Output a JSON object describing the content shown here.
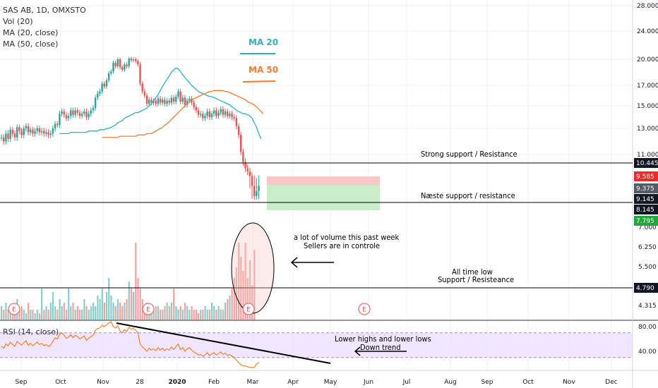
{
  "legend": {
    "symbol": "SAS AB, 1D, OMXSTO",
    "volume": "Vol (20)",
    "ma20": "MA (20, close)",
    "ma50": "MA (50, close)",
    "rsi": "RSI (14, close)"
  },
  "colors": {
    "up": "#26a69a",
    "down": "#ef5350",
    "ma20": "#2cb3b3",
    "ma50": "#f57c2d",
    "rsi_line": "#ff6d00",
    "rsi_band": "#e9dcff",
    "label_bg_dark": "#131722",
    "label_bg_red": "#ef2a2a",
    "label_bg_green": "#22a83a",
    "label_bg_gray": "#555a66"
  },
  "annotations": {
    "ma20_label": "MA 20",
    "ma50_label": "MA 50",
    "strong_support": "Strong support / Resistance",
    "naeste_support": "Næste support / resistance",
    "volume_note_1": "a lot of volume this past week",
    "volume_note_2": "Sellers are in controle",
    "all_time_low_1": "All time low",
    "all_time_low_2": "Support / Resisteance",
    "rsi_note_1": "Lower highs and lower lows",
    "rsi_note_2": "Down trend"
  },
  "earnings_marker": "E",
  "chart_data": [
    {
      "type": "candlestick",
      "title": "SAS AB, 1D, OMXSTO",
      "x_ticks": [
        "Sep",
        "Oct",
        "Nov",
        "28",
        "2020",
        "Feb",
        "Mar",
        "Apr",
        "May",
        "Jun",
        "Jul",
        "Aug",
        "Sep",
        "Oct",
        "Nov",
        "Dec"
      ],
      "y_ticks": [
        "28.000",
        "24.000",
        "20.000",
        "17.000",
        "15.000",
        "13.000",
        "11.000"
      ],
      "price_labels": [
        {
          "value": "10.445",
          "style": "dark"
        },
        {
          "value": "9.585",
          "style": "red"
        },
        {
          "value": "9.375",
          "style": "gray"
        },
        {
          "value": "9.145",
          "style": "dark"
        },
        {
          "value": "8.145",
          "style": "dark"
        },
        {
          "value": "7.795",
          "style": "green"
        }
      ],
      "horizontal_lines": [
        10.445,
        8.145
      ],
      "position_box": {
        "entry": 9.375,
        "stop": 9.585,
        "target": 7.795
      },
      "close": [
        12.3,
        12.0,
        12.6,
        12.2,
        12.9,
        12.6,
        12.3,
        13.1,
        12.8,
        12.5,
        13.0,
        13.2,
        12.7,
        12.9,
        12.6,
        12.8,
        13.0,
        12.7,
        12.8,
        12.6,
        12.7,
        12.5,
        12.6,
        13.0,
        13.4,
        13.3,
        14.3,
        14.5,
        14.2,
        13.9,
        14.1,
        14.6,
        14.2,
        14.6,
        14.4,
        14.1,
        14.3,
        14.5,
        14.0,
        14.3,
        14.6,
        14.8,
        15.8,
        16.2,
        16.4,
        17.2,
        16.9,
        17.6,
        18.4,
        18.6,
        19.6,
        19.2,
        20.0,
        19.1,
        18.8,
        19.4,
        19.2,
        20.1,
        19.9,
        20.0,
        19.8,
        19.4,
        17.2,
        16.4,
        16.0,
        15.2,
        15.6,
        15.3,
        15.5,
        15.2,
        15.7,
        15.3,
        15.6,
        15.2,
        15.5,
        15.3,
        15.8,
        15.4,
        15.9,
        16.4,
        15.4,
        15.8,
        15.1,
        15.5,
        15.7,
        15.3,
        14.9,
        14.6,
        14.2,
        14.3,
        13.9,
        14.1,
        14.5,
        14.0,
        14.3,
        14.6,
        14.1,
        14.4,
        14.7,
        14.2,
        14.5,
        14.1,
        14.3,
        14.0,
        13.9,
        13.2,
        12.5,
        11.2,
        10.5,
        10.1,
        9.9,
        9.6,
        9.4,
        9.2,
        9.3,
        9.4
      ],
      "ma20": [
        12.6,
        12.6,
        12.6,
        12.6,
        12.6,
        12.7,
        12.7,
        12.7,
        12.7,
        12.7,
        12.7,
        12.7,
        12.7,
        12.8,
        12.8,
        12.8,
        12.8,
        12.8,
        12.9,
        12.9,
        12.9,
        13.0,
        13.0,
        13.1,
        13.2,
        13.3,
        13.5,
        13.6,
        13.7,
        13.9,
        14.0,
        14.1,
        14.2,
        14.3,
        14.4,
        14.4,
        14.5,
        14.6,
        14.7,
        14.8,
        15.0,
        15.2,
        15.5,
        15.8,
        16.1,
        16.5,
        16.9,
        17.3,
        17.7,
        18.1,
        18.5,
        18.8,
        19.0,
        18.9,
        18.6,
        18.2,
        17.9,
        17.6,
        17.3,
        17.0,
        16.8,
        16.6,
        16.4,
        16.3,
        16.2,
        16.1,
        16.0,
        15.9,
        15.9,
        15.8,
        15.7,
        15.6,
        15.5,
        15.4,
        15.3,
        15.2,
        15.1,
        14.9,
        14.8,
        14.6,
        14.5,
        14.4,
        14.3,
        14.3,
        14.2,
        14.1,
        13.9,
        13.5,
        13.1,
        12.6,
        12.2
      ],
      "ma50": [
        12.3,
        12.3,
        12.3,
        12.3,
        12.3,
        12.3,
        12.3,
        12.3,
        12.4,
        12.4,
        12.4,
        12.4,
        12.4,
        12.4,
        12.4,
        12.4,
        12.5,
        12.5,
        12.5,
        12.5,
        12.6,
        12.6,
        12.6,
        12.7,
        12.8,
        12.9,
        13.0,
        13.1,
        13.3,
        13.4,
        13.6,
        13.8,
        14.0,
        14.2,
        14.4,
        14.6,
        14.8,
        15.0,
        15.2,
        15.4,
        15.6,
        15.7,
        15.8,
        15.9,
        16.0,
        16.1,
        16.2,
        16.3,
        16.4,
        16.4,
        16.5,
        16.5,
        16.5,
        16.5,
        16.5,
        16.4,
        16.4,
        16.3,
        16.2,
        16.1,
        16.0,
        15.9,
        15.8,
        15.7,
        15.6,
        15.4,
        15.3,
        15.2,
        15.1,
        14.9,
        14.7,
        14.5,
        14.3
      ]
    },
    {
      "type": "bar",
      "title": "Vol (20)",
      "y_ticks": [
        "7.000",
        "6.250",
        "5.500",
        "4.315"
      ],
      "horizontal_line": 4.79,
      "price_label": {
        "value": "4.790",
        "style": "dark"
      },
      "values": [
        0.4,
        0.3,
        0.5,
        0.3,
        0.4,
        0.3,
        0.2,
        0.6,
        0.3,
        0.4,
        0.3,
        0.2,
        0.5,
        0.3,
        0.3,
        0.2,
        0.3,
        0.2,
        0.9,
        0.3,
        0.4,
        0.3,
        0.5,
        0.8,
        0.4,
        0.3,
        0.6,
        0.4,
        0.5,
        0.3,
        0.9,
        0.4,
        0.5,
        0.3,
        0.4,
        0.3,
        0.3,
        0.6,
        0.4,
        0.3,
        0.4,
        0.5,
        0.4,
        0.7,
        0.6,
        0.9,
        0.5,
        0.8,
        1.2,
        0.7,
        0.5,
        0.4,
        0.6,
        0.5,
        0.4,
        0.5,
        0.6,
        1.1,
        0.9,
        0.8,
        2.2,
        1.2,
        0.9,
        0.6,
        0.4,
        0.5,
        0.4,
        0.3,
        0.3,
        0.4,
        0.4,
        0.3,
        0.3,
        0.4,
        0.5,
        0.4,
        0.5,
        0.9,
        0.4,
        0.3,
        0.4,
        0.3,
        0.5,
        0.4,
        0.3,
        0.4,
        0.3,
        0.3,
        0.2,
        0.3,
        0.3,
        0.4,
        0.3,
        0.3,
        0.5,
        0.4,
        0.3,
        0.4,
        0.3,
        0.3,
        0.5,
        0.6,
        0.7,
        0.9,
        1.2,
        1.5,
        2.2,
        1.8,
        1.4,
        2.2,
        1.2,
        1.7,
        1.0,
        2.0
      ]
    },
    {
      "type": "line",
      "title": "RSI (14, close)",
      "y_ticks": [
        "80.00",
        "40.00"
      ],
      "band": [
        70,
        30
      ],
      "trendline": true,
      "values": [
        48,
        45,
        52,
        49,
        55,
        51,
        48,
        56,
        53,
        50,
        54,
        57,
        50,
        53,
        49,
        52,
        55,
        51,
        53,
        49,
        51,
        48,
        50,
        56,
        62,
        60,
        68,
        70,
        66,
        61,
        63,
        67,
        62,
        66,
        64,
        60,
        62,
        65,
        58,
        61,
        64,
        66,
        74,
        77,
        78,
        82,
        80,
        83,
        86,
        88,
        80,
        78,
        81,
        73,
        70,
        75,
        72,
        79,
        76,
        77,
        74,
        70,
        52,
        47,
        44,
        40,
        45,
        42,
        44,
        41,
        46,
        42,
        45,
        41,
        44,
        42,
        47,
        43,
        48,
        52,
        43,
        46,
        40,
        44,
        46,
        42,
        39,
        37,
        34,
        35,
        32,
        34,
        38,
        33,
        36,
        38,
        34,
        36,
        39,
        35,
        37,
        33,
        35,
        32,
        30,
        26,
        22,
        18,
        17,
        16,
        15,
        14,
        14,
        14,
        19,
        22
      ]
    }
  ]
}
